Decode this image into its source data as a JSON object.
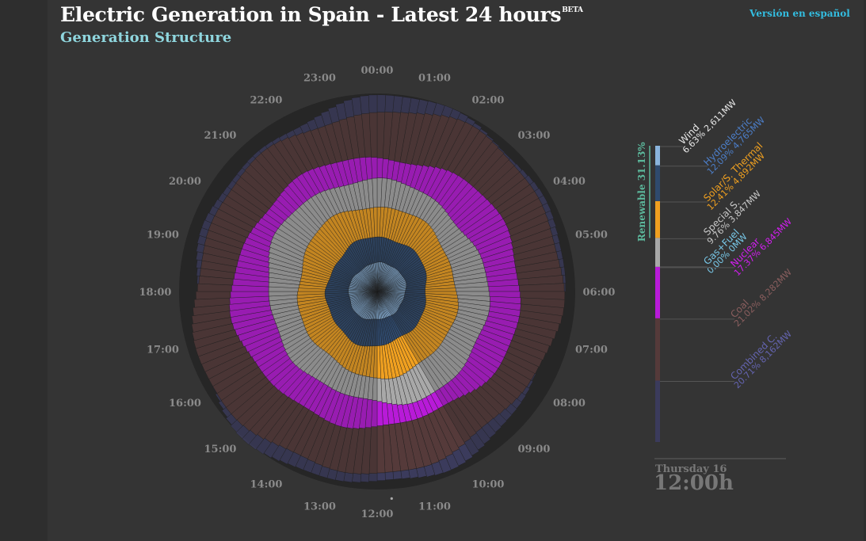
{
  "header": {
    "title": "Electric Generation in Spain - Latest 24 hours",
    "beta": "BETA",
    "subtitle": "Generation Structure",
    "language_link": "Versión en español"
  },
  "timestamp": {
    "day": "Thursday 16",
    "time": "12:00h"
  },
  "colors": {
    "background": "#2e2e2e",
    "panel": "#343434",
    "dial": "#262626",
    "wind": "#8ab4dd",
    "hydroelectric": "#2f4a6e",
    "solar": "#f0a020",
    "special": "#a8a8a8",
    "gasfuel": "#78c8e8",
    "nuclear": "#b81ad8",
    "coal": "#553a3a",
    "combined": "#3b3b5c"
  },
  "chart_data": {
    "type": "radial-stacked-bar",
    "hour_labels": [
      "00:00",
      "01:00",
      "02:00",
      "03:00",
      "04:00",
      "05:00",
      "06:00",
      "07:00",
      "08:00",
      "09:00",
      "10:00",
      "11:00",
      "12:00",
      "13:00",
      "14:00",
      "15:00",
      "16:00",
      "17:00",
      "18:00",
      "19:00",
      "20:00",
      "21:00",
      "22:00",
      "23:00"
    ],
    "current_hour": "12:00",
    "group_label": "Renewable 31.13%",
    "series": [
      {
        "name": "Wind",
        "pct": "6.63%",
        "mw": "2,611MW",
        "share": 6.63,
        "color": "#8ab4dd",
        "label_color": "#e8e8e8"
      },
      {
        "name": "Hydroelectric",
        "pct": "12.09%",
        "mw": "4,765MW",
        "share": 12.09,
        "color": "#2f4a6e",
        "label_color": "#4c7ec8"
      },
      {
        "name": "Solar/S. Thermal",
        "pct": "12.41%",
        "mw": "4,892MW",
        "share": 12.41,
        "color": "#f0a020",
        "label_color": "#f0a020"
      },
      {
        "name": "Special S.",
        "pct": "9.76%",
        "mw": "3,847MW",
        "share": 9.76,
        "color": "#a8a8a8",
        "label_color": "#c8c8c8"
      },
      {
        "name": "Gas+Fuel",
        "pct": "0.00%",
        "mw": "0MW",
        "share": 0.0,
        "color": "#78c8e8",
        "label_color": "#78c8e8"
      },
      {
        "name": "Nuclear",
        "pct": "17.37%",
        "mw": "6,845MW",
        "share": 17.37,
        "color": "#b81ad8",
        "label_color": "#d21ef0"
      },
      {
        "name": "Coal",
        "pct": "21.02%",
        "mw": "8,282MW",
        "share": 21.02,
        "color": "#553a3a",
        "label_color": "#8a5e5e"
      },
      {
        "name": "Combined C.",
        "pct": "20.71%",
        "mw": "8,162MW",
        "share": 20.71,
        "color": "#3b3b5c",
        "label_color": "#6464b0"
      }
    ]
  }
}
